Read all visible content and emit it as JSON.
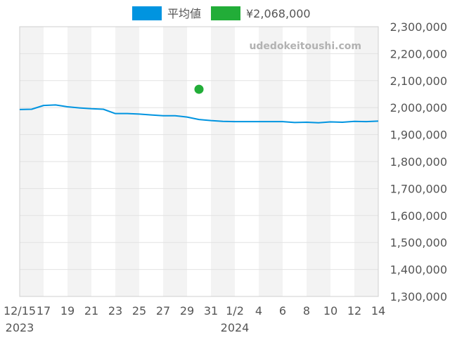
{
  "chart_data": {
    "type": "line",
    "watermark": "udedokeitoushi.com",
    "legend": {
      "placement": "top-center",
      "items": [
        {
          "label": "平均値",
          "color": "#0094e0"
        },
        {
          "label": "¥2,068,000",
          "color": "#22ad38"
        }
      ]
    },
    "y_axis": {
      "position": "right",
      "ylim": [
        1300000,
        2300000
      ],
      "ticks": [
        {
          "value": 2300000,
          "label": "2,300,000"
        },
        {
          "value": 2200000,
          "label": "2,200,000"
        },
        {
          "value": 2100000,
          "label": "2,100,000"
        },
        {
          "value": 2000000,
          "label": "2,000,000"
        },
        {
          "value": 1900000,
          "label": "1,900,000"
        },
        {
          "value": 1800000,
          "label": "1,800,000"
        },
        {
          "value": 1700000,
          "label": "1,700,000"
        },
        {
          "value": 1600000,
          "label": "1,600,000"
        },
        {
          "value": 1500000,
          "label": "1,500,000"
        },
        {
          "value": 1400000,
          "label": "1,400,000"
        },
        {
          "value": 1300000,
          "label": "1,300,000"
        }
      ]
    },
    "x_axis": {
      "xlim": [
        "2023-12-15",
        "2024-01-14"
      ],
      "ticks": [
        {
          "date": "2023-12-15",
          "label": "12/15"
        },
        {
          "date": "2023-12-17",
          "label": "17"
        },
        {
          "date": "2023-12-19",
          "label": "19"
        },
        {
          "date": "2023-12-21",
          "label": "21"
        },
        {
          "date": "2023-12-23",
          "label": "23"
        },
        {
          "date": "2023-12-25",
          "label": "25"
        },
        {
          "date": "2023-12-27",
          "label": "27"
        },
        {
          "date": "2023-12-29",
          "label": "29"
        },
        {
          "date": "2023-12-31",
          "label": "31"
        },
        {
          "date": "2024-01-02",
          "label": "1/2"
        },
        {
          "date": "2024-01-04",
          "label": "4"
        },
        {
          "date": "2024-01-06",
          "label": "6"
        },
        {
          "date": "2024-01-08",
          "label": "8"
        },
        {
          "date": "2024-01-10",
          "label": "10"
        },
        {
          "date": "2024-01-12",
          "label": "12"
        },
        {
          "date": "2024-01-14",
          "label": "14"
        }
      ],
      "year_labels": [
        {
          "date": "2023-12-15",
          "label": "2023"
        },
        {
          "date": "2024-01-02",
          "label": "2024"
        }
      ]
    },
    "grid": true,
    "alternating_bands": true,
    "series": [
      {
        "name": "平均値",
        "type": "line",
        "color": "#0094e0",
        "points": [
          {
            "x": "2023-12-15",
            "y": 1993000
          },
          {
            "x": "2023-12-16",
            "y": 1994000
          },
          {
            "x": "2023-12-17",
            "y": 2008000
          },
          {
            "x": "2023-12-18",
            "y": 2010000
          },
          {
            "x": "2023-12-19",
            "y": 2003000
          },
          {
            "x": "2023-12-20",
            "y": 1999000
          },
          {
            "x": "2023-12-21",
            "y": 1996000
          },
          {
            "x": "2023-12-22",
            "y": 1994000
          },
          {
            "x": "2023-12-23",
            "y": 1978000
          },
          {
            "x": "2023-12-24",
            "y": 1978000
          },
          {
            "x": "2023-12-25",
            "y": 1976000
          },
          {
            "x": "2023-12-26",
            "y": 1973000
          },
          {
            "x": "2023-12-27",
            "y": 1970000
          },
          {
            "x": "2023-12-28",
            "y": 1970000
          },
          {
            "x": "2023-12-29",
            "y": 1965000
          },
          {
            "x": "2023-12-30",
            "y": 1956000
          },
          {
            "x": "2023-12-31",
            "y": 1952000
          },
          {
            "x": "2024-01-01",
            "y": 1949000
          },
          {
            "x": "2024-01-02",
            "y": 1948000
          },
          {
            "x": "2024-01-03",
            "y": 1948000
          },
          {
            "x": "2024-01-04",
            "y": 1948000
          },
          {
            "x": "2024-01-05",
            "y": 1948000
          },
          {
            "x": "2024-01-06",
            "y": 1948000
          },
          {
            "x": "2024-01-07",
            "y": 1945000
          },
          {
            "x": "2024-01-08",
            "y": 1946000
          },
          {
            "x": "2024-01-09",
            "y": 1944000
          },
          {
            "x": "2024-01-10",
            "y": 1947000
          },
          {
            "x": "2024-01-11",
            "y": 1946000
          },
          {
            "x": "2024-01-12",
            "y": 1949000
          },
          {
            "x": "2024-01-13",
            "y": 1948000
          },
          {
            "x": "2024-01-14",
            "y": 1950000
          }
        ]
      },
      {
        "name": "¥2,068,000",
        "type": "scatter",
        "color": "#22ad38",
        "points": [
          {
            "x": "2023-12-30",
            "y": 2068000
          }
        ]
      }
    ]
  }
}
